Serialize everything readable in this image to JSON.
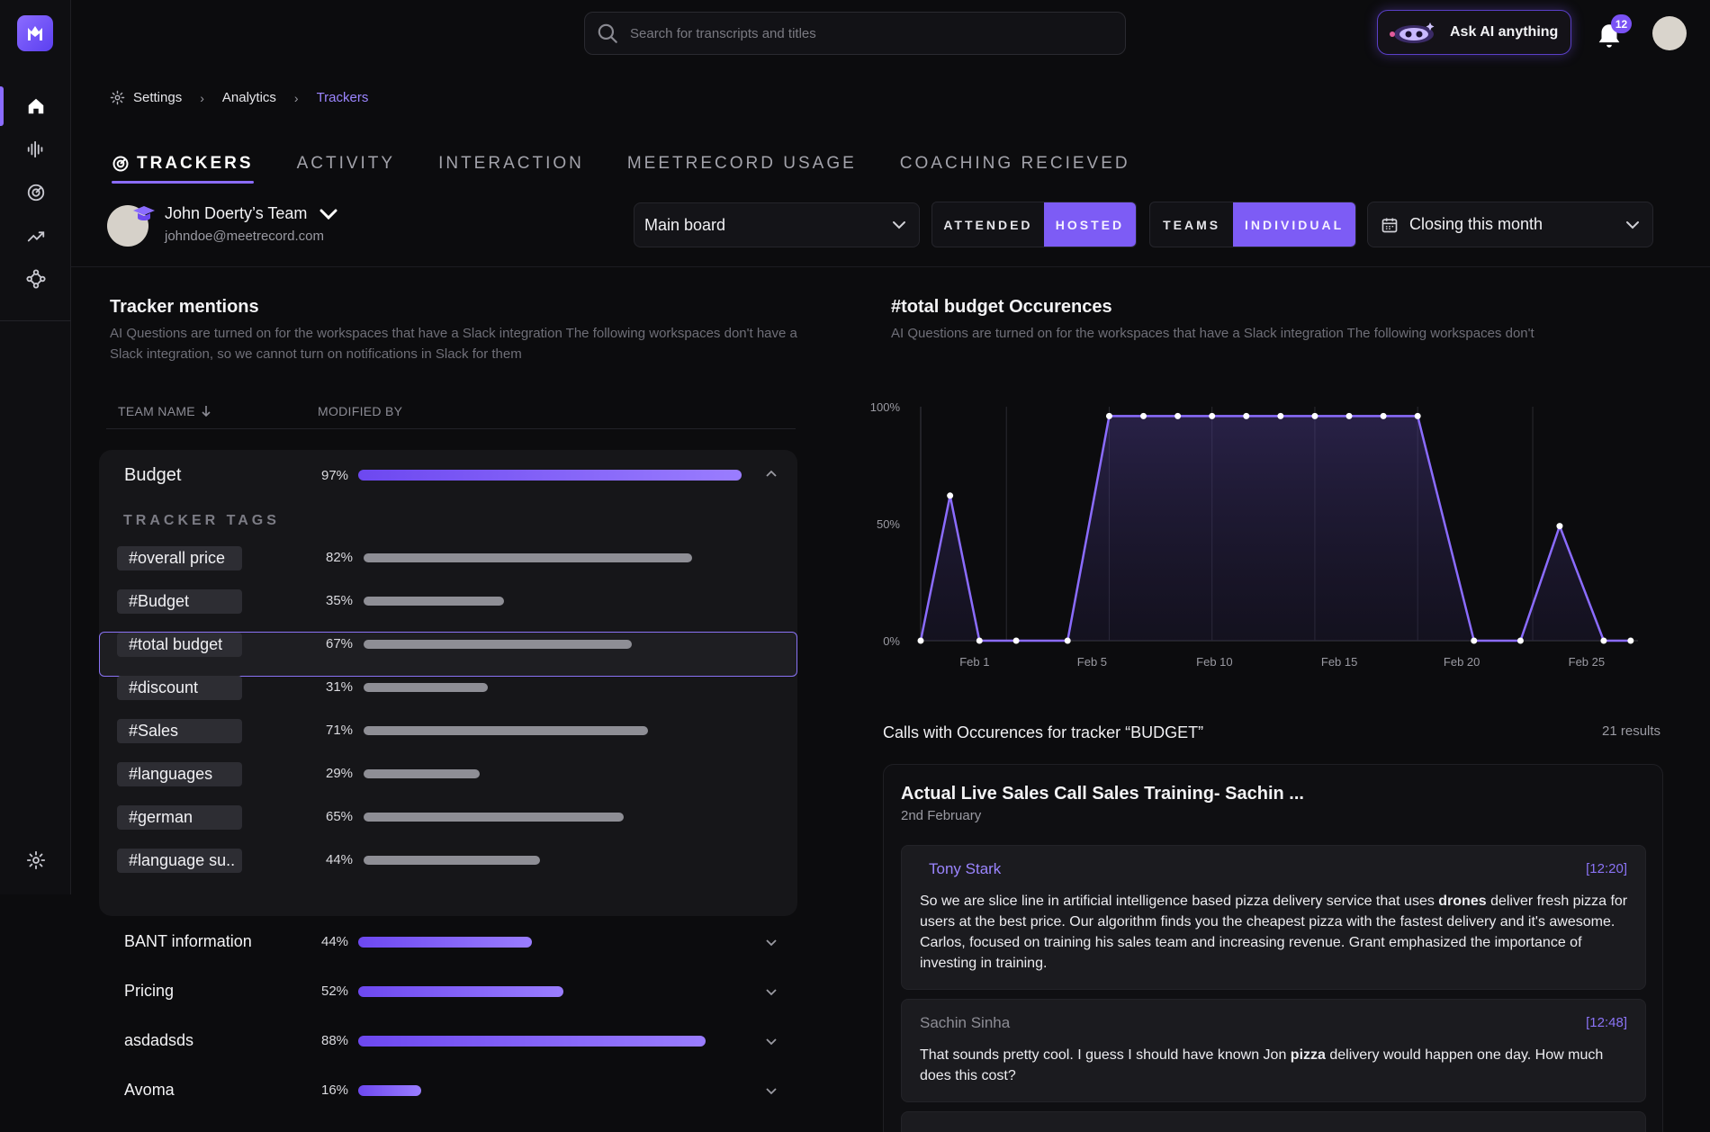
{
  "search": {
    "placeholder": "Search for transcripts and titles"
  },
  "ask_ai": {
    "label": "Ask AI anything"
  },
  "notifications": {
    "count": "12"
  },
  "breadcrumb": {
    "items": [
      "Settings",
      "Analytics",
      "Trackers"
    ]
  },
  "tabs": [
    "TRACKERS",
    "ACTIVITY",
    "INTERACTION",
    "MEETRECORD USAGE",
    "COACHING RECIEVED"
  ],
  "team": {
    "name": "John Doerty’s Team",
    "email": "johndoe@meetrecord.com"
  },
  "board": {
    "selected": "Main board"
  },
  "attendance_toggle": {
    "options": [
      "ATTENDED",
      "HOSTED"
    ],
    "active": "HOSTED"
  },
  "scope_toggle": {
    "options": [
      "TEAMS",
      "INDIVIDUAL"
    ],
    "active": "INDIVIDUAL"
  },
  "date_filter": {
    "selected": "Closing this month"
  },
  "tracker_mentions": {
    "title": "Tracker mentions",
    "description": "AI Questions are turned on for the workspaces that have a Slack integration The following workspaces don't have a Slack integration, so we cannot turn on notifications in Slack for them",
    "col_team_name": "TEAM NAME",
    "col_modified_by": "MODIFIED BY",
    "tracker_tags_label": "TRACKER TAGS",
    "budget": {
      "name": "Budget",
      "percent": 97,
      "percent_label": "97%"
    },
    "tags": [
      {
        "name": "#overall price",
        "percent": 82,
        "percent_label": "82%"
      },
      {
        "name": "#Budget",
        "percent": 35,
        "percent_label": "35%"
      },
      {
        "name": "#total budget",
        "percent": 67,
        "percent_label": "67%"
      },
      {
        "name": "#discount",
        "percent": 31,
        "percent_label": "31%"
      },
      {
        "name": "#Sales",
        "percent": 71,
        "percent_label": "71%"
      },
      {
        "name": "#languages",
        "percent": 29,
        "percent_label": "29%"
      },
      {
        "name": "#german",
        "percent": 65,
        "percent_label": "65%"
      },
      {
        "name": "#language su..",
        "percent": 44,
        "percent_label": "44%"
      }
    ],
    "selected_tag": "#total budget",
    "groups": [
      {
        "name": "BANT information",
        "percent": 44,
        "percent_label": "44%"
      },
      {
        "name": "Pricing",
        "percent": 52,
        "percent_label": "52%"
      },
      {
        "name": "asdadsds",
        "percent": 88,
        "percent_label": "88%"
      },
      {
        "name": "Avoma",
        "percent": 16,
        "percent_label": "16%"
      }
    ]
  },
  "occurrences": {
    "title": "#total budget Occurences",
    "description": "AI Questions are turned on for the workspaces that have a Slack integration The following workspaces don't"
  },
  "chart_data": {
    "type": "area",
    "y_tick_labels": [
      "100%",
      "50%",
      "0%"
    ],
    "x_tick_labels": [
      "Feb 1",
      "Feb 5",
      "Feb 10",
      "Feb 15",
      "Feb 20",
      "Feb 25"
    ],
    "ylim": [
      0,
      100
    ],
    "points": [
      {
        "x": 0,
        "y": 0
      },
      {
        "x": 1.2,
        "y": 62
      },
      {
        "x": 2.4,
        "y": 0
      },
      {
        "x": 3.9,
        "y": 0
      },
      {
        "x": 6.0,
        "y": 0
      },
      {
        "x": 7.7,
        "y": 96
      },
      {
        "x": 9.1,
        "y": 96
      },
      {
        "x": 10.5,
        "y": 96
      },
      {
        "x": 11.9,
        "y": 96
      },
      {
        "x": 13.3,
        "y": 96
      },
      {
        "x": 14.7,
        "y": 96
      },
      {
        "x": 16.1,
        "y": 96
      },
      {
        "x": 17.5,
        "y": 96
      },
      {
        "x": 18.9,
        "y": 96
      },
      {
        "x": 20.3,
        "y": 96
      },
      {
        "x": 22.6,
        "y": 0
      },
      {
        "x": 24.5,
        "y": 0
      },
      {
        "x": 26.1,
        "y": 49
      },
      {
        "x": 27.9,
        "y": 0
      },
      {
        "x": 29.0,
        "y": 0
      }
    ],
    "x_tick_positions": [
      2.2,
      7.0,
      12.0,
      17.1,
      22.1,
      27.2
    ],
    "vertical_grid_x": [
      3.5,
      7.7,
      11.9,
      16.1,
      20.3,
      25.0
    ],
    "xlim": [
      0,
      29.3
    ],
    "line_color": "#8b6cff",
    "grid": true
  },
  "calls": {
    "title": "Calls with Occurences for tracker “BUDGET”",
    "count": "21 results",
    "call": {
      "title": "Actual Live Sales Call Sales Training- Sachin ...",
      "date": "2nd February",
      "messages": [
        {
          "speaker": "Tony Stark",
          "time": "[12:20]",
          "text_before": "So we are slice line in artificial intelligence based pizza delivery service that uses ",
          "highlight": "drones",
          "text_after": " deliver fresh pizza for users at the best price. Our algorithm finds you the cheapest pizza with the fastest delivery and it's awesome. Carlos, focused on training his sales team and increasing revenue. Grant emphasized the importance of investing in training."
        },
        {
          "speaker": "Sachin Sinha",
          "time": "[12:48]",
          "text_before": "That sounds pretty cool. I guess I should have known Jon ",
          "highlight": "pizza",
          "text_after": " delivery would happen one day. How much does this cost?"
        }
      ]
    }
  }
}
